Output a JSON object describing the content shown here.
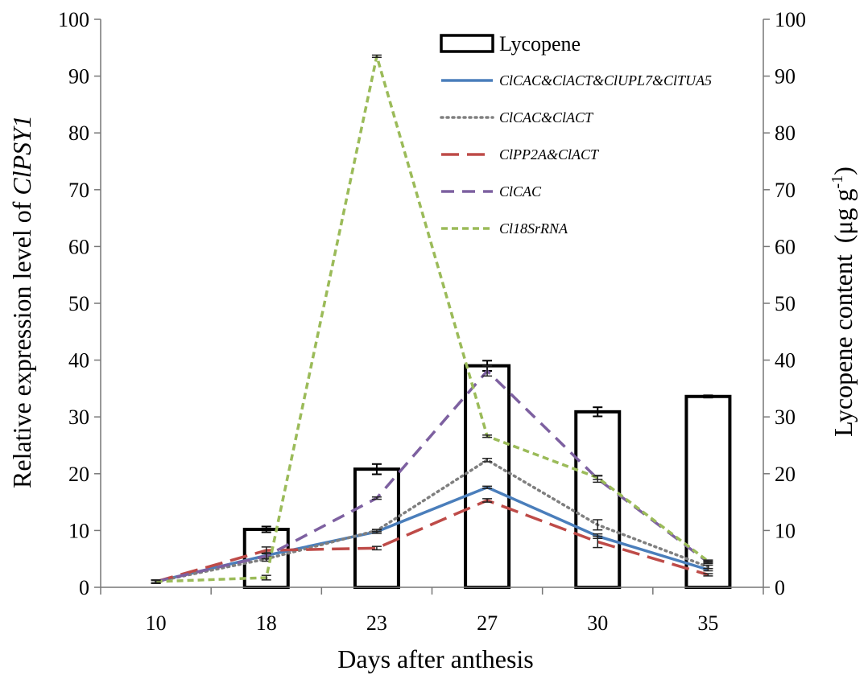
{
  "chart_data": {
    "type": "bar+line",
    "x_categories": [
      "10",
      "18",
      "23",
      "27",
      "30",
      "35"
    ],
    "xlabel": "Days after anthesis",
    "ylabel_left": {
      "prefix": "Relative expression level of ",
      "italic": "ClPSY1"
    },
    "ylabel_right": "Lycopene content",
    "ylabel_right_unit": {
      "open": "(μg g",
      "sup": "-1",
      "close": ")"
    },
    "ylim_left": [
      0,
      100
    ],
    "ylim_right": [
      0,
      100
    ],
    "yticks": [
      "0",
      "10",
      "20",
      "30",
      "40",
      "50",
      "60",
      "70",
      "80",
      "90",
      "100"
    ],
    "bars": {
      "name": "Lycopene",
      "axis": "right",
      "values": [
        null,
        10.2,
        20.8,
        39.0,
        30.9,
        33.6
      ],
      "errors": [
        null,
        0.5,
        0.9,
        0.9,
        0.8,
        0.2
      ]
    },
    "series": [
      {
        "name": "ClCAC&ClACT&ClUPL7&ClTUA5",
        "color": "#4a7ebb",
        "dash": "solid",
        "values": [
          1.0,
          5.6,
          9.8,
          17.6,
          9.0,
          3.1
        ],
        "errors": [
          0.3,
          0.5,
          0.3,
          0.2,
          0.4,
          0.2
        ]
      },
      {
        "name": "ClCAC&ClACT",
        "color": "#7f7f7f",
        "dash": "dotted",
        "values": [
          1.0,
          5.0,
          10.0,
          22.4,
          11.0,
          3.6
        ],
        "errors": [
          0.3,
          0.4,
          0.2,
          0.3,
          0.9,
          0.3
        ]
      },
      {
        "name": "ClPP2A&ClACT",
        "color": "#be4b48",
        "dash": "longdash",
        "values": [
          1.0,
          6.5,
          6.9,
          15.3,
          8.0,
          2.2
        ],
        "errors": [
          0.3,
          0.6,
          0.3,
          0.3,
          1.0,
          0.2
        ]
      },
      {
        "name": "ClCAC",
        "color": "#7d60a0",
        "dash": "dash",
        "values": [
          1.0,
          5.5,
          15.7,
          38.1,
          19.1,
          4.4
        ],
        "errors": [
          0.3,
          0.5,
          0.2,
          0.9,
          0.6,
          0.2
        ]
      },
      {
        "name": "Cl18SrRNA",
        "color": "#9bbb59",
        "dash": "shortdash",
        "values": [
          1.0,
          1.7,
          93.5,
          26.6,
          19.3,
          4.6
        ],
        "errors": [
          0.2,
          0.4,
          0.2,
          0.2,
          0.3,
          0.2
        ]
      }
    ],
    "legend_position": "top-center",
    "grid": false
  }
}
